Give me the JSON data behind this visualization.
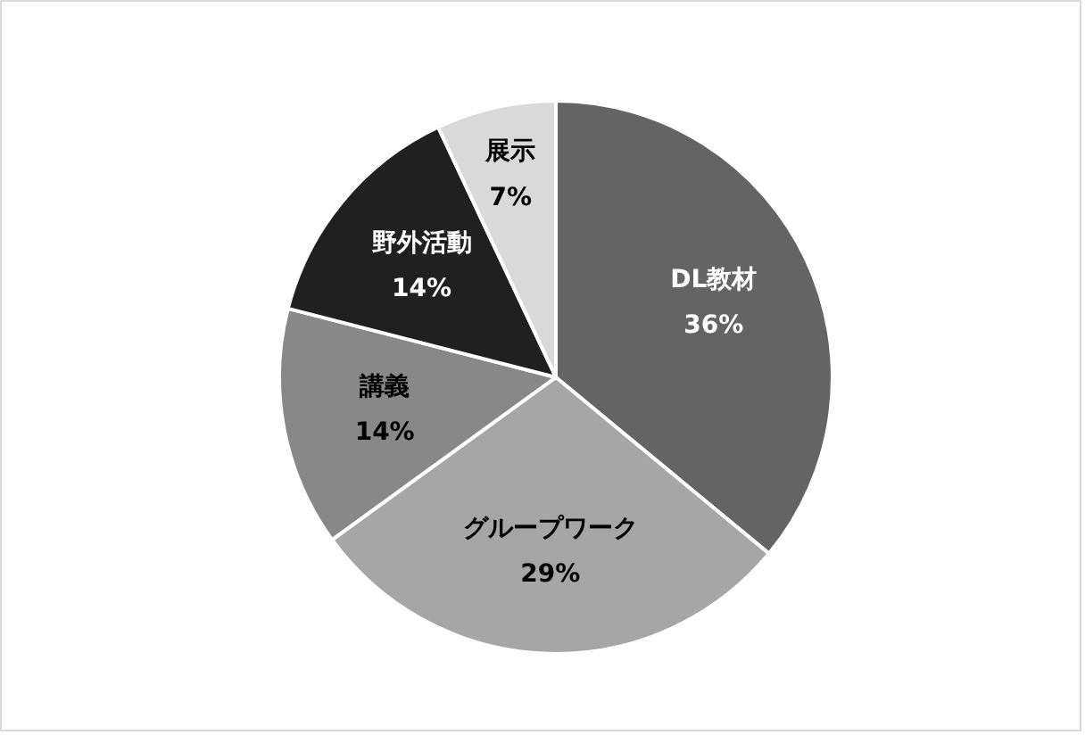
{
  "chart_data": {
    "type": "pie",
    "categories": [
      "DL教材",
      "グループワーク",
      "講義",
      "野外活動",
      "展示"
    ],
    "values": [
      36,
      29,
      14,
      14,
      7
    ],
    "colors": [
      "#646464",
      "#a6a6a6",
      "#888888",
      "#202020",
      "#d9d9d9"
    ],
    "value_labels": [
      "36%",
      "29%",
      "14%",
      "14%",
      "7%"
    ],
    "legend": false
  }
}
